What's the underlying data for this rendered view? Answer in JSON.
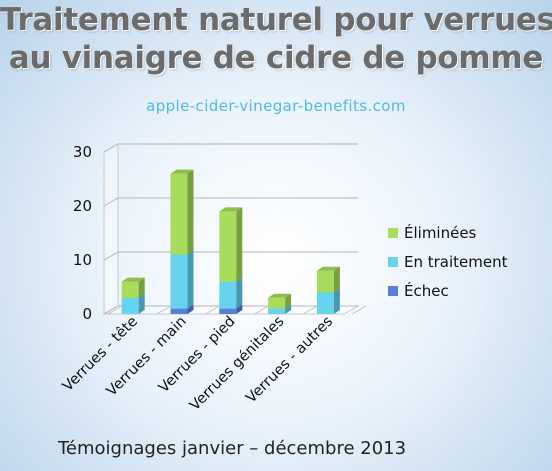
{
  "title_line1": "Traitement naturel pour verrues",
  "title_line2": "au vinaigre de cidre de pomme",
  "source": "apple-cider-vinegar-benefits.com",
  "footer": "Témoignages janvier – décembre 2013",
  "chart_data": {
    "type": "bar",
    "stacked": true,
    "three_d": true,
    "categories": [
      "Verrues - tête",
      "Verrues - main",
      "Verrues - pied",
      "Verrues génitales",
      "Verrues - autres"
    ],
    "series": [
      {
        "name": "Échec",
        "color": "#5b7fd8",
        "values": [
          0,
          1,
          1,
          0,
          0
        ]
      },
      {
        "name": "En traitement",
        "color": "#66d3ef",
        "values": [
          3,
          10,
          5,
          1,
          4
        ]
      },
      {
        "name": "Éliminées",
        "color": "#a8dd5c",
        "values": [
          3,
          15,
          13,
          2,
          4
        ]
      }
    ],
    "legend_order": [
      "Éliminées",
      "En traitement",
      "Échec"
    ],
    "ylim": [
      0,
      30
    ],
    "yticks": [
      "0",
      "10",
      "20",
      "30"
    ],
    "grid": true,
    "legend_position": "right"
  }
}
